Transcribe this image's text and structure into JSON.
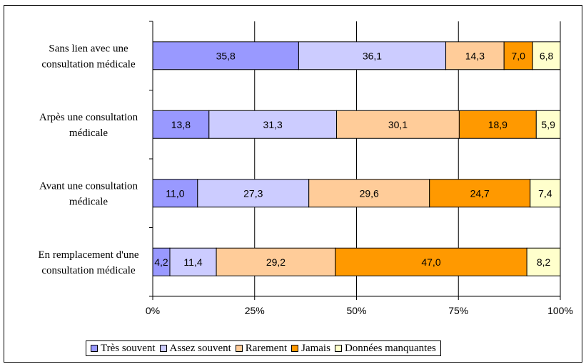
{
  "chart_data": {
    "type": "bar",
    "orientation": "horizontal",
    "stacked": "percent",
    "categories": [
      [
        "Sans lien avec une",
        "consultation médicale"
      ],
      [
        "Arpès une consultation",
        "médicale"
      ],
      [
        "Avant une consultation",
        "médicale"
      ],
      [
        "En remplacement d'une",
        "consultation médicale"
      ]
    ],
    "series": [
      {
        "name": "Très souvent",
        "color": "#9999ff",
        "values": [
          35.8,
          13.8,
          11.0,
          4.2
        ],
        "labels": [
          "35,8",
          "13,8",
          "11,0",
          "4,2"
        ]
      },
      {
        "name": "Assez souvent",
        "color": "#ccccff",
        "values": [
          36.1,
          31.3,
          27.3,
          11.4
        ],
        "labels": [
          "36,1",
          "31,3",
          "27,3",
          "11,4"
        ]
      },
      {
        "name": "Rarement",
        "color": "#ffcc99",
        "values": [
          14.3,
          30.1,
          29.6,
          29.2
        ],
        "labels": [
          "14,3",
          "30,1",
          "29,6",
          "29,2"
        ]
      },
      {
        "name": "Jamais",
        "color": "#ff9900",
        "values": [
          7.0,
          18.9,
          24.7,
          47.0
        ],
        "labels": [
          "7,0",
          "18,9",
          "24,7",
          "47,0"
        ]
      },
      {
        "name": "Données manquantes",
        "color": "#ffffcc",
        "values": [
          6.8,
          5.9,
          7.4,
          8.2
        ],
        "labels": [
          "6,8",
          "5,9",
          "7,4",
          "8,2"
        ]
      }
    ],
    "xticks": [
      "0%",
      "25%",
      "50%",
      "75%",
      "100%"
    ],
    "xlim": [
      0,
      100
    ],
    "grid": true,
    "legend_position": "bottom"
  }
}
